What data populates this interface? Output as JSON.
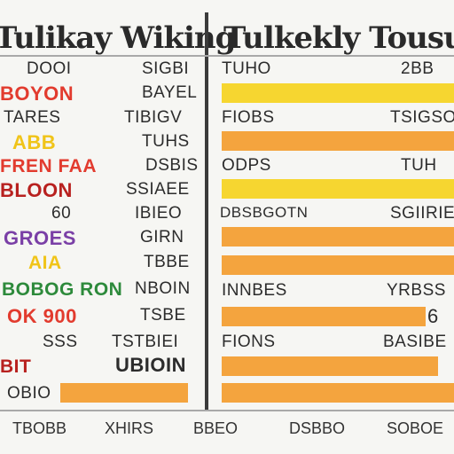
{
  "left_panel": {
    "title": "Tulikay Wiking",
    "rows": [
      {
        "a": "DOOI",
        "b": "SIGBI"
      },
      {
        "a": "BOYON",
        "b": "BAYEL"
      },
      {
        "a": "TARES",
        "b": "TIBIGV"
      },
      {
        "a": "ABB",
        "b": "TUHS"
      },
      {
        "a": "FREN FAA",
        "b": "DSBIS"
      },
      {
        "a": "BLOON",
        "b": "SSIAEE"
      },
      {
        "a": "60",
        "b": "IBIEO"
      },
      {
        "a": "GROES",
        "b": "GIRN"
      },
      {
        "a": "AIA",
        "b": "TBBE"
      },
      {
        "a": "BOBOG RON",
        "b": "NBOIN"
      },
      {
        "a": "OK 900",
        "b": "TSBE"
      },
      {
        "a": "SSS",
        "b": "TSTBIEI"
      },
      {
        "a": "BIT",
        "b": "UBIOIN"
      },
      {
        "a": "OBIO",
        "b": ""
      }
    ]
  },
  "right_panel": {
    "title": "Tulkekly Tousuk",
    "rows": [
      {
        "a": "TUHO",
        "b": "2BB"
      },
      {
        "a": "",
        "b": ""
      },
      {
        "a": "FIOBS",
        "b": "TSIGSO"
      },
      {
        "a": "",
        "b": ""
      },
      {
        "a": "ODPS",
        "b": "TUH"
      },
      {
        "a": "",
        "b": ""
      },
      {
        "a": "DBSBGOTN",
        "b": "SGIIRIE"
      },
      {
        "a": "",
        "b": ""
      },
      {
        "a": "",
        "b": ""
      },
      {
        "a": "INNBES",
        "b": "YRBSS"
      },
      {
        "a": "",
        "b": "6"
      },
      {
        "a": "FIONS",
        "b": "BASIBE"
      },
      {
        "a": "",
        "b": ""
      },
      {
        "a": "",
        "b": ""
      }
    ]
  },
  "footer": [
    "TBOBB",
    "XHIRS",
    "BBEO",
    "DSBBO",
    "SOBOE"
  ],
  "colors": {
    "bar_yellow": "#f6d630",
    "bar_orange": "#f4a43e",
    "divider": "#3b3b3b",
    "text": "#2c2c2c",
    "colored_text": [
      "#e23b2e",
      "#f0c419",
      "#7a3fa6",
      "#2d8a3b",
      "#f08a1c"
    ]
  }
}
